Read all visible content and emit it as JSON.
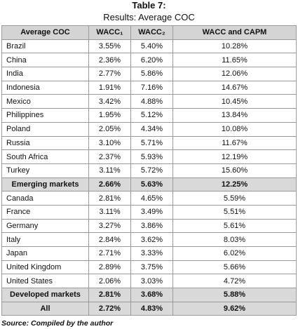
{
  "title": "Table 7:",
  "subtitle": "Results: Average COC",
  "table": {
    "header": [
      "Average COC",
      "WACC₁",
      "WACC₂",
      "WACC and CAPM"
    ],
    "rows": [
      {
        "cells": [
          "Brazil",
          "3.55%",
          "5.40%",
          "10.28%"
        ]
      },
      {
        "cells": [
          "China",
          "2.36%",
          "6.20%",
          "11.65%"
        ]
      },
      {
        "cells": [
          "India",
          "2.77%",
          "5.86%",
          "12.06%"
        ]
      },
      {
        "cells": [
          "Indonesia",
          "1.91%",
          "7.16%",
          "14.67%"
        ]
      },
      {
        "cells": [
          "Mexico",
          "3.42%",
          "4.88%",
          "10.45%"
        ]
      },
      {
        "cells": [
          "Philippines",
          "1.95%",
          "5.12%",
          "13.84%"
        ]
      },
      {
        "cells": [
          "Poland",
          "2.05%",
          "4.34%",
          "10.08%"
        ]
      },
      {
        "cells": [
          "Russia",
          "3.10%",
          "5.71%",
          "11.67%"
        ]
      },
      {
        "cells": [
          "South Africa",
          "2.37%",
          "5.93%",
          "12.19%"
        ]
      },
      {
        "cells": [
          "Turkey",
          "3.11%",
          "5.72%",
          "15.60%"
        ]
      },
      {
        "cells": [
          "Emerging markets",
          "2.66%",
          "5.63%",
          "12.25%"
        ],
        "highlight": true
      },
      {
        "cells": [
          "Canada",
          "2.81%",
          "4.65%",
          "5.59%"
        ]
      },
      {
        "cells": [
          "France",
          "3.11%",
          "3.49%",
          "5.51%"
        ]
      },
      {
        "cells": [
          "Germany",
          "3.27%",
          "3.86%",
          "5.61%"
        ]
      },
      {
        "cells": [
          "Italy",
          "2.84%",
          "3.62%",
          "8.03%"
        ]
      },
      {
        "cells": [
          "Japan",
          "2.71%",
          "3.33%",
          "6.02%"
        ]
      },
      {
        "cells": [
          "United Kingdom",
          "2.89%",
          "3.75%",
          "5.66%"
        ]
      },
      {
        "cells": [
          "United States",
          "2.06%",
          "3.03%",
          "4.72%"
        ]
      },
      {
        "cells": [
          "Developed markets",
          "2.81%",
          "3.68%",
          "5.88%"
        ],
        "highlight": true
      },
      {
        "cells": [
          "All",
          "2.72%",
          "4.83%",
          "9.62%"
        ],
        "highlight": true
      }
    ]
  },
  "source": "Source: Compiled by the author"
}
